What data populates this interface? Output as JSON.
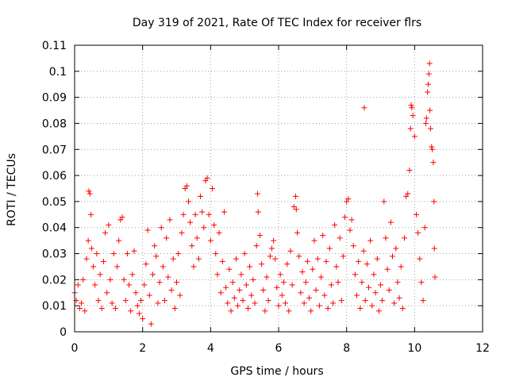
{
  "chart_data": {
    "type": "scatter",
    "title": "Day 319 of 2021, Rate Of TEC Index for receiver flrs",
    "xlabel": "GPS time / hours",
    "ylabel": "ROTI / TECUs",
    "xlim": [
      0,
      12
    ],
    "ylim": [
      0,
      0.11
    ],
    "xticks": [
      0,
      2,
      4,
      6,
      8,
      10,
      12
    ],
    "xtick_labels": [
      "0",
      "2",
      "4",
      "6",
      "8",
      "10",
      "12"
    ],
    "yticks": [
      0,
      0.01,
      0.02,
      0.03,
      0.04,
      0.05,
      0.06,
      0.07,
      0.08,
      0.09,
      0.1,
      0.11
    ],
    "ytick_labels": [
      "0",
      "0.01",
      "0.02",
      "0.03",
      "0.04",
      "0.05",
      "0.06",
      "0.07",
      "0.08",
      "0.09",
      "0.1",
      "0.11"
    ],
    "grid": true,
    "marker": "+",
    "marker_color": "#ff0000",
    "series": [
      {
        "name": "ROTI",
        "points": [
          [
            0.0,
            0.015
          ],
          [
            0.05,
            0.012
          ],
          [
            0.1,
            0.018
          ],
          [
            0.15,
            0.009
          ],
          [
            0.2,
            0.011
          ],
          [
            0.25,
            0.02
          ],
          [
            0.3,
            0.008
          ],
          [
            0.35,
            0.028
          ],
          [
            0.4,
            0.035
          ],
          [
            0.42,
            0.054
          ],
          [
            0.45,
            0.053
          ],
          [
            0.48,
            0.045
          ],
          [
            0.5,
            0.032
          ],
          [
            0.55,
            0.025
          ],
          [
            0.6,
            0.018
          ],
          [
            0.65,
            0.03
          ],
          [
            0.7,
            0.012
          ],
          [
            0.75,
            0.022
          ],
          [
            0.8,
            0.009
          ],
          [
            0.85,
            0.027
          ],
          [
            0.9,
            0.038
          ],
          [
            0.95,
            0.015
          ],
          [
            1.0,
            0.041
          ],
          [
            1.05,
            0.02
          ],
          [
            1.1,
            0.011
          ],
          [
            1.15,
            0.03
          ],
          [
            1.2,
            0.009
          ],
          [
            1.25,
            0.025
          ],
          [
            1.3,
            0.035
          ],
          [
            1.35,
            0.043
          ],
          [
            1.4,
            0.044
          ],
          [
            1.45,
            0.02
          ],
          [
            1.5,
            0.012
          ],
          [
            1.55,
            0.03
          ],
          [
            1.6,
            0.018
          ],
          [
            1.65,
            0.008
          ],
          [
            1.7,
            0.022
          ],
          [
            1.75,
            0.031
          ],
          [
            1.8,
            0.015
          ],
          [
            1.85,
            0.01
          ],
          [
            1.9,
            0.007
          ],
          [
            1.95,
            0.012
          ],
          [
            2.0,
            0.005
          ],
          [
            2.05,
            0.018
          ],
          [
            2.1,
            0.026
          ],
          [
            2.15,
            0.039
          ],
          [
            2.2,
            0.014
          ],
          [
            2.25,
            0.003
          ],
          [
            2.3,
            0.022
          ],
          [
            2.35,
            0.033
          ],
          [
            2.4,
            0.029
          ],
          [
            2.45,
            0.011
          ],
          [
            2.5,
            0.019
          ],
          [
            2.55,
            0.04
          ],
          [
            2.6,
            0.025
          ],
          [
            2.65,
            0.012
          ],
          [
            2.7,
            0.036
          ],
          [
            2.75,
            0.021
          ],
          [
            2.8,
            0.043
          ],
          [
            2.85,
            0.016
          ],
          [
            2.9,
            0.028
          ],
          [
            2.95,
            0.009
          ],
          [
            3.0,
            0.019
          ],
          [
            3.05,
            0.03
          ],
          [
            3.1,
            0.014
          ],
          [
            3.15,
            0.038
          ],
          [
            3.2,
            0.045
          ],
          [
            3.25,
            0.055
          ],
          [
            3.3,
            0.056
          ],
          [
            3.35,
            0.05
          ],
          [
            3.4,
            0.042
          ],
          [
            3.45,
            0.033
          ],
          [
            3.5,
            0.025
          ],
          [
            3.55,
            0.045
          ],
          [
            3.6,
            0.036
          ],
          [
            3.65,
            0.028
          ],
          [
            3.7,
            0.052
          ],
          [
            3.75,
            0.046
          ],
          [
            3.8,
            0.04
          ],
          [
            3.85,
            0.058
          ],
          [
            3.9,
            0.059
          ],
          [
            3.95,
            0.045
          ],
          [
            4.0,
            0.035
          ],
          [
            4.05,
            0.055
          ],
          [
            4.1,
            0.041
          ],
          [
            4.15,
            0.03
          ],
          [
            4.2,
            0.022
          ],
          [
            4.25,
            0.038
          ],
          [
            4.3,
            0.015
          ],
          [
            4.35,
            0.027
          ],
          [
            4.4,
            0.046
          ],
          [
            4.45,
            0.017
          ],
          [
            4.5,
            0.011
          ],
          [
            4.55,
            0.024
          ],
          [
            4.6,
            0.008
          ],
          [
            4.65,
            0.019
          ],
          [
            4.7,
            0.013
          ],
          [
            4.75,
            0.028
          ],
          [
            4.8,
            0.01
          ],
          [
            4.85,
            0.016
          ],
          [
            4.9,
            0.022
          ],
          [
            4.95,
            0.012
          ],
          [
            5.0,
            0.03
          ],
          [
            5.05,
            0.018
          ],
          [
            5.1,
            0.009
          ],
          [
            5.15,
            0.025
          ],
          [
            5.2,
            0.014
          ],
          [
            5.25,
            0.02
          ],
          [
            5.3,
            0.011
          ],
          [
            5.35,
            0.033
          ],
          [
            5.38,
            0.053
          ],
          [
            5.4,
            0.046
          ],
          [
            5.45,
            0.037
          ],
          [
            5.5,
            0.026
          ],
          [
            5.55,
            0.016
          ],
          [
            5.6,
            0.008
          ],
          [
            5.65,
            0.021
          ],
          [
            5.7,
            0.012
          ],
          [
            5.75,
            0.029
          ],
          [
            5.8,
            0.032
          ],
          [
            5.85,
            0.035
          ],
          [
            5.9,
            0.028
          ],
          [
            5.95,
            0.017
          ],
          [
            6.0,
            0.01
          ],
          [
            6.05,
            0.022
          ],
          [
            6.1,
            0.014
          ],
          [
            6.15,
            0.019
          ],
          [
            6.2,
            0.011
          ],
          [
            6.25,
            0.026
          ],
          [
            6.3,
            0.008
          ],
          [
            6.35,
            0.031
          ],
          [
            6.4,
            0.018
          ],
          [
            6.45,
            0.048
          ],
          [
            6.5,
            0.052
          ],
          [
            6.52,
            0.047
          ],
          [
            6.55,
            0.038
          ],
          [
            6.6,
            0.029
          ],
          [
            6.65,
            0.015
          ],
          [
            6.7,
            0.023
          ],
          [
            6.75,
            0.011
          ],
          [
            6.8,
            0.019
          ],
          [
            6.85,
            0.027
          ],
          [
            6.9,
            0.013
          ],
          [
            6.95,
            0.008
          ],
          [
            7.0,
            0.024
          ],
          [
            7.05,
            0.035
          ],
          [
            7.1,
            0.016
          ],
          [
            7.15,
            0.028
          ],
          [
            7.2,
            0.01
          ],
          [
            7.25,
            0.021
          ],
          [
            7.3,
            0.037
          ],
          [
            7.35,
            0.014
          ],
          [
            7.4,
            0.027
          ],
          [
            7.45,
            0.009
          ],
          [
            7.5,
            0.032
          ],
          [
            7.55,
            0.018
          ],
          [
            7.6,
            0.011
          ],
          [
            7.65,
            0.041
          ],
          [
            7.7,
            0.025
          ],
          [
            7.75,
            0.019
          ],
          [
            7.8,
            0.036
          ],
          [
            7.85,
            0.012
          ],
          [
            7.9,
            0.029
          ],
          [
            7.95,
            0.044
          ],
          [
            8.0,
            0.05
          ],
          [
            8.05,
            0.051
          ],
          [
            8.1,
            0.039
          ],
          [
            8.15,
            0.043
          ],
          [
            8.2,
            0.033
          ],
          [
            8.25,
            0.022
          ],
          [
            8.3,
            0.014
          ],
          [
            8.35,
            0.027
          ],
          [
            8.4,
            0.009
          ],
          [
            8.45,
            0.019
          ],
          [
            8.5,
            0.031
          ],
          [
            8.52,
            0.086
          ],
          [
            8.55,
            0.012
          ],
          [
            8.6,
            0.026
          ],
          [
            8.65,
            0.017
          ],
          [
            8.7,
            0.035
          ],
          [
            8.75,
            0.01
          ],
          [
            8.8,
            0.022
          ],
          [
            8.85,
            0.015
          ],
          [
            8.9,
            0.028
          ],
          [
            8.95,
            0.008
          ],
          [
            9.0,
            0.018
          ],
          [
            9.05,
            0.012
          ],
          [
            9.1,
            0.05
          ],
          [
            9.15,
            0.036
          ],
          [
            9.2,
            0.024
          ],
          [
            9.25,
            0.016
          ],
          [
            9.3,
            0.042
          ],
          [
            9.35,
            0.029
          ],
          [
            9.4,
            0.011
          ],
          [
            9.45,
            0.032
          ],
          [
            9.5,
            0.019
          ],
          [
            9.55,
            0.013
          ],
          [
            9.6,
            0.025
          ],
          [
            9.65,
            0.009
          ],
          [
            9.7,
            0.036
          ],
          [
            9.75,
            0.052
          ],
          [
            9.8,
            0.053
          ],
          [
            9.85,
            0.062
          ],
          [
            9.88,
            0.078
          ],
          [
            9.9,
            0.087
          ],
          [
            9.92,
            0.086
          ],
          [
            9.95,
            0.083
          ],
          [
            10.0,
            0.075
          ],
          [
            10.05,
            0.045
          ],
          [
            10.1,
            0.038
          ],
          [
            10.15,
            0.028
          ],
          [
            10.2,
            0.019
          ],
          [
            10.25,
            0.012
          ],
          [
            10.3,
            0.04
          ],
          [
            10.33,
            0.08
          ],
          [
            10.35,
            0.082
          ],
          [
            10.38,
            0.092
          ],
          [
            10.4,
            0.095
          ],
          [
            10.42,
            0.099
          ],
          [
            10.44,
            0.103
          ],
          [
            10.45,
            0.085
          ],
          [
            10.47,
            0.078
          ],
          [
            10.5,
            0.071
          ],
          [
            10.52,
            0.07
          ],
          [
            10.55,
            0.065
          ],
          [
            10.57,
            0.05
          ],
          [
            10.58,
            0.032
          ],
          [
            10.6,
            0.021
          ]
        ]
      }
    ]
  }
}
